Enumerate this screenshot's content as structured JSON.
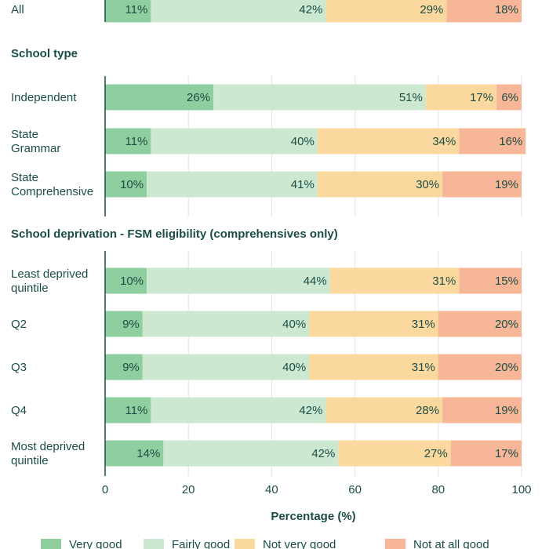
{
  "chart_data": {
    "type": "bar",
    "orientation": "horizontal-stacked",
    "xlabel": "Percentage (%)",
    "xlim": [
      0,
      100
    ],
    "xticks": [
      "0",
      "20",
      "40",
      "60",
      "80",
      "100"
    ],
    "grid": true,
    "legend_position": "bottom",
    "series": [
      {
        "name": "Very good",
        "color": "#8fcf9f"
      },
      {
        "name": "Fairly good",
        "color": "#cde8d1"
      },
      {
        "name": "Not very good",
        "color": "#fbd99e"
      },
      {
        "name": "Not at all good",
        "color": "#f7b697"
      }
    ],
    "groups": [
      {
        "title": "",
        "rows": [
          {
            "label": [
              "All"
            ],
            "values": [
              11,
              42,
              29,
              18
            ]
          }
        ]
      },
      {
        "title": "School type",
        "rows": [
          {
            "label": [
              "Independent"
            ],
            "values": [
              26,
              51,
              17,
              6
            ]
          },
          {
            "label": [
              "State",
              "Grammar"
            ],
            "values": [
              11,
              40,
              34,
              16
            ]
          },
          {
            "label": [
              "State",
              "Comprehensive"
            ],
            "values": [
              10,
              41,
              30,
              19
            ]
          }
        ]
      },
      {
        "title": "School deprivation - FSM eligibility (comprehensives only)",
        "rows": [
          {
            "label": [
              "Least deprived",
              "quintile"
            ],
            "values": [
              10,
              44,
              31,
              15
            ]
          },
          {
            "label": [
              "Q2"
            ],
            "values": [
              9,
              40,
              31,
              20
            ]
          },
          {
            "label": [
              "Q3"
            ],
            "values": [
              9,
              40,
              31,
              20
            ]
          },
          {
            "label": [
              "Q4"
            ],
            "values": [
              11,
              42,
              28,
              19
            ]
          },
          {
            "label": [
              "Most deprived",
              "quintile"
            ],
            "values": [
              14,
              42,
              27,
              17
            ]
          }
        ]
      }
    ]
  }
}
